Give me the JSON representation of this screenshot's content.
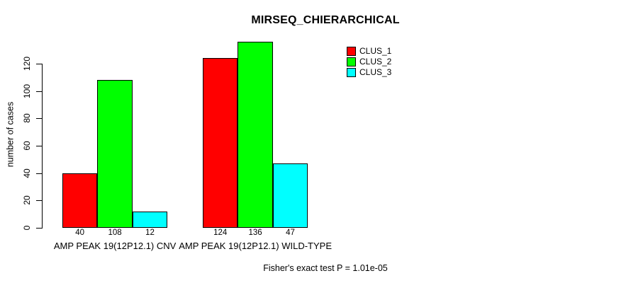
{
  "chart_data": {
    "type": "bar",
    "title": "MIRSEQ_CHIERARCHICAL",
    "categories": [
      "AMP PEAK 19(12P12.1) CNV",
      "AMP PEAK 19(12P12.1) WILD-TYPE"
    ],
    "series": [
      {
        "name": "CLUS_1",
        "color": "#FF0000",
        "values": [
          40,
          124
        ]
      },
      {
        "name": "CLUS_2",
        "color": "#00FF00",
        "values": [
          108,
          136
        ]
      },
      {
        "name": "CLUS_3",
        "color": "#00FFFF",
        "values": [
          12,
          47
        ]
      }
    ],
    "ylabel": "number of cases",
    "yticks": [
      0,
      20,
      40,
      60,
      80,
      100,
      120
    ],
    "ylim": [
      0,
      140
    ],
    "grid": false,
    "bar_value_labels": true,
    "legend": [
      "CLUS_1",
      "CLUS_2",
      "CLUS_3"
    ],
    "legend_position": "top-right",
    "annotation": "Fisher's exact test P = 1.01e-05"
  }
}
